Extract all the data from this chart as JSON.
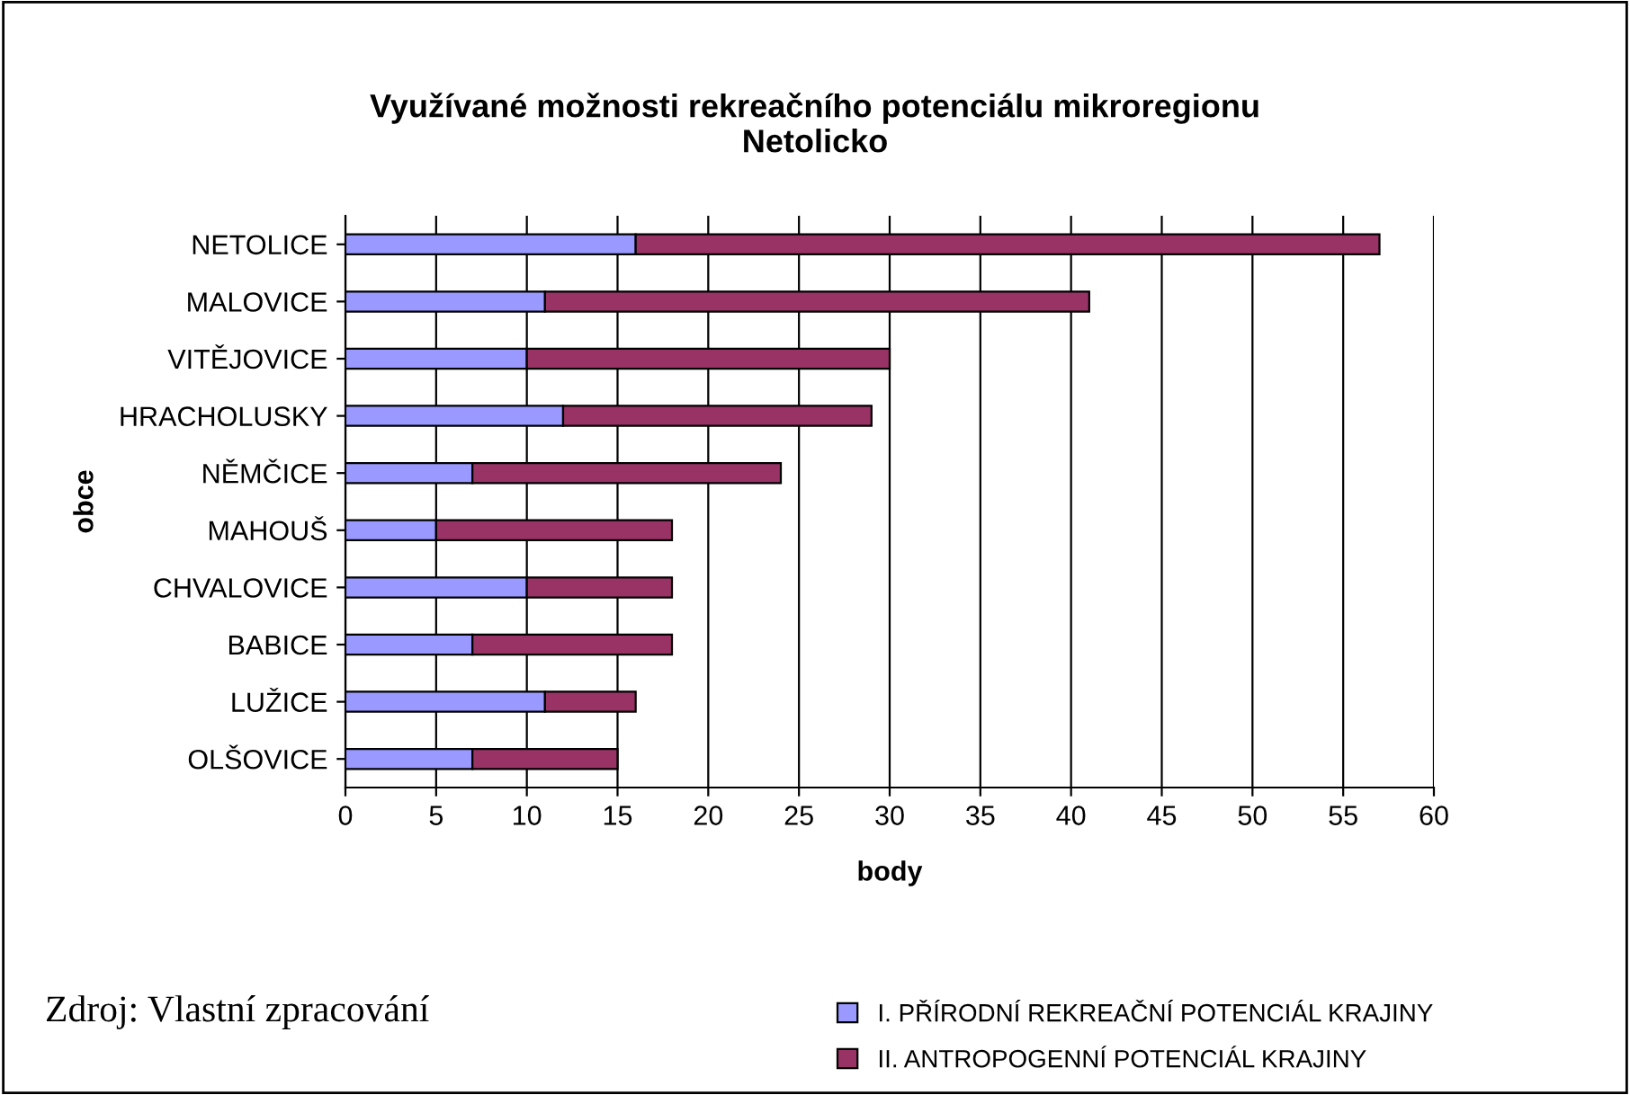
{
  "chart_data": {
    "type": "bar",
    "orientation": "horizontal",
    "stacked": true,
    "title": "Využívané možnosti rekreačního potenciálu mikroregionu\nNetolicko",
    "xlabel": "body",
    "ylabel": "obce",
    "categories": [
      "NETOLICE",
      "MALOVICE",
      "VITĚJOVICE",
      "HRACHOLUSKY",
      "NĚMČICE",
      "MAHOUŠ",
      "CHVALOVICE",
      "BABICE",
      "LUŽICE",
      "OLŠOVICE"
    ],
    "series": [
      {
        "name": "I. PŘÍRODNÍ REKREAČNÍ POTENCIÁL KRAJINY",
        "color": "#9999ff",
        "values": [
          16,
          11,
          10,
          12,
          7,
          5,
          10,
          7,
          11,
          7
        ]
      },
      {
        "name": "II. ANTROPOGENNÍ POTENCIÁL KRAJINY",
        "color": "#993366",
        "values": [
          41,
          30,
          20,
          17,
          17,
          13,
          8,
          11,
          5,
          8
        ]
      }
    ],
    "xlim": [
      0,
      60
    ],
    "xticks": [
      0,
      5,
      10,
      15,
      20,
      25,
      30,
      35,
      40,
      45,
      50,
      55,
      60
    ],
    "grid": "x",
    "legend": "bottom right",
    "annotations": [
      "Zdroj: Vlastní zpracování"
    ]
  }
}
